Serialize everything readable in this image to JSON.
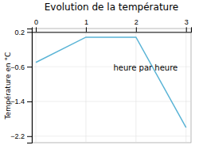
{
  "chart_data": {
    "type": "line",
    "title": "Evolution de la température",
    "ylabel": "Température en °C",
    "x": [
      0,
      1,
      2,
      3
    ],
    "values": [
      -0.5,
      0.08,
      0.08,
      -2.0
    ],
    "color": "#5ab4d6",
    "xlim": [
      -0.08,
      3.1
    ],
    "xticks": [
      0,
      1,
      2,
      3
    ],
    "ylim": [
      -2.35,
      0.28
    ],
    "yticks": [
      0.2,
      -0.6,
      -1.4,
      -2.2
    ],
    "grid": true,
    "annotations": [
      {
        "text": "heure par heure",
        "x": 1.55,
        "y": -0.55
      }
    ]
  }
}
